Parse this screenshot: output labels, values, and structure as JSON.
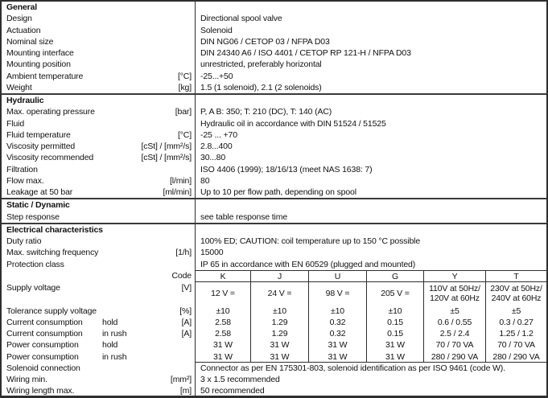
{
  "colors": {
    "background": "#ffffff",
    "border": "#2f2f2f",
    "text": "#111111"
  },
  "sections": {
    "general": {
      "title": "General",
      "rows": {
        "design": {
          "label": "Design",
          "value": "Directional spool valve"
        },
        "actuation": {
          "label": "Actuation",
          "value": "Solenoid"
        },
        "nominal_size": {
          "label": "Nominal size",
          "value": "DIN NG06 / CETOP 03 / NFPA D03"
        },
        "mounting_interface": {
          "label": "Mounting interface",
          "value": "DIN 24340 A6 / ISO 4401 / CETOP RP 121-H / NFPA D03"
        },
        "mounting_position": {
          "label": "Mounting position",
          "value": "unrestricted, preferably horizontal"
        },
        "ambient_temperature": {
          "label": "Ambient temperature",
          "unit": "[°C]",
          "value": "-25...+50"
        },
        "weight": {
          "label": "Weight",
          "unit": "[kg]",
          "value": "1.5 (1 solenoid), 2.1 (2 solenoids)"
        }
      }
    },
    "hydraulic": {
      "title": "Hydraulic",
      "rows": {
        "max_operating_pressure": {
          "label": "Max. operating pressure",
          "unit": "[bar]",
          "value": "P, A B: 350; T: 210 (DC), T: 140 (AC)"
        },
        "fluid": {
          "label": "Fluid",
          "value": "Hydraulic oil in accordance with DIN 51524 / 51525"
        },
        "fluid_temperature": {
          "label": "Fluid temperature",
          "unit": "[°C]",
          "value": "-25 ... +70"
        },
        "viscosity_permitted": {
          "label": "Viscosity permitted",
          "unit": "[cSt] / [mm²/s]",
          "value": "2.8...400"
        },
        "viscosity_recommended": {
          "label": "Viscosity recommended",
          "unit": "[cSt] / [mm²/s]",
          "value": "30...80"
        },
        "filtration": {
          "label": "Filtration",
          "value": "ISO 4406 (1999); 18/16/13 (meet NAS 1638: 7)"
        },
        "flow_max": {
          "label": "Flow max.",
          "unit": "[l/min]",
          "value": "80"
        },
        "leakage": {
          "label": "Leakage at 50 bar",
          "unit": "[ml/min]",
          "value": "Up to 10 per flow path, depending on spool"
        }
      }
    },
    "static_dynamic": {
      "title": "Static / Dynamic",
      "rows": {
        "step_response": {
          "label": "Step response",
          "value": "see table response time"
        }
      }
    },
    "electrical": {
      "title": "Electrical characteristics",
      "rows": {
        "duty_ratio": {
          "label": "Duty ratio",
          "value": "100% ED; CAUTION: coil temperature up to 150 °C possible"
        },
        "max_switching_frequency": {
          "label": "Max. switching frequency",
          "unit": "[1/h]",
          "value": "15000"
        },
        "protection_class": {
          "label": "Protection class",
          "value": "IP 65 in accordance with EN 60529 (plugged and mounted)"
        },
        "solenoid_connection": {
          "label": "Solenoid connection",
          "value": "Connector as per EN 175301-803, solenoid identification as per ISO 9461 (code W)."
        },
        "wiring_min": {
          "label": "Wiring min.",
          "unit": "[mm²]",
          "value": "3 x 1.5 recommended"
        },
        "wiring_length_max": {
          "label": "Wiring length max.",
          "unit": "[m]",
          "value": "50 recommended"
        }
      },
      "code_table": {
        "header_label": "Code",
        "codes": [
          "K",
          "J",
          "U",
          "G",
          "Y",
          "T"
        ],
        "rows": {
          "supply_voltage": {
            "label": "Supply voltage",
            "unit": "[V]",
            "values": [
              "12 V =",
              "24 V =",
              "98 V =",
              "205 V =",
              "110V at 50Hz/\n120V at 60Hz",
              "230V at 50Hz/\n240V at 60Hz"
            ]
          },
          "tolerance": {
            "label": "Tolerance supply voltage",
            "unit": "[%]",
            "values": [
              "±10",
              "±10",
              "±10",
              "±10",
              "±5",
              "±5"
            ]
          },
          "current_hold": {
            "label": "Current consumption",
            "sublabel": "hold",
            "unit": "[A]",
            "values": [
              "2.58",
              "1.29",
              "0.32",
              "0.15",
              "0.6 / 0.55",
              "0.3 / 0.27"
            ]
          },
          "current_inrush": {
            "label": "Current consumption",
            "sublabel": "in rush",
            "unit": "[A]",
            "values": [
              "2.58",
              "1.29",
              "0.32",
              "0.15",
              "2.5 / 2.4",
              "1.25 / 1.2"
            ]
          },
          "power_hold": {
            "label": "Power consumption",
            "sublabel": "hold",
            "values": [
              "31 W",
              "31 W",
              "31 W",
              "31 W",
              "70 / 70 VA",
              "70 / 70 VA"
            ]
          },
          "power_inrush": {
            "label": "Power consumption",
            "sublabel": "in rush",
            "values": [
              "31 W",
              "31 W",
              "31 W",
              "31 W",
              "280 / 290 VA",
              "280 / 290 VA"
            ]
          }
        }
      }
    }
  }
}
